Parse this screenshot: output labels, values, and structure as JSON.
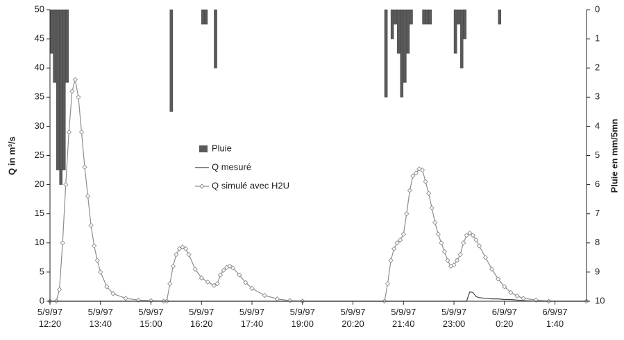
{
  "chart_data": {
    "type": "line",
    "ylabel": "Q in m³/s",
    "y2label": "Pluie en mm/5mn",
    "ylim": [
      0,
      50
    ],
    "yticks": [
      0,
      5,
      10,
      15,
      20,
      25,
      30,
      35,
      40,
      45,
      50
    ],
    "y2lim": [
      10,
      0
    ],
    "y2ticks": [
      0,
      1,
      2,
      3,
      4,
      5,
      6,
      7,
      8,
      9,
      10
    ],
    "xlim": [
      "5/9/97 12:20",
      "6/9/97 2:30"
    ],
    "xticks": [
      "5/9/97 12:20",
      "5/9/97 13:40",
      "5/9/97 15:00",
      "5/9/97 16:20",
      "5/9/97 17:40",
      "5/9/97 19:00",
      "5/9/97 20:20",
      "5/9/97 21:40",
      "5/9/97 23:00",
      "6/9/97 0:20",
      "6/9/97 1:40"
    ],
    "x": [
      "5/9/97 12:20",
      "5/9/97 12:30",
      "5/9/97 12:35",
      "5/9/97 12:40",
      "5/9/97 12:45",
      "5/9/97 12:50",
      "5/9/97 12:55",
      "5/9/97 13:00",
      "5/9/97 13:05",
      "5/9/97 13:10",
      "5/9/97 13:15",
      "5/9/97 13:20",
      "5/9/97 13:25",
      "5/9/97 13:30",
      "5/9/97 13:35",
      "5/9/97 13:40",
      "5/9/97 13:50",
      "5/9/97 14:00",
      "5/9/97 14:20",
      "5/9/97 14:40",
      "5/9/97 15:00",
      "5/9/97 15:20",
      "5/9/97 15:25",
      "5/9/97 15:30",
      "5/9/97 15:35",
      "5/9/97 15:40",
      "5/9/97 15:45",
      "5/9/97 15:50",
      "5/9/97 15:55",
      "5/9/97 16:00",
      "5/9/97 16:10",
      "5/9/97 16:20",
      "5/9/97 16:30",
      "5/9/97 16:40",
      "5/9/97 16:45",
      "5/9/97 16:50",
      "5/9/97 16:55",
      "5/9/97 17:00",
      "5/9/97 17:05",
      "5/9/97 17:10",
      "5/9/97 17:20",
      "5/9/97 17:30",
      "5/9/97 17:40",
      "5/9/97 18:00",
      "5/9/97 18:20",
      "5/9/97 18:40",
      "5/9/97 19:00",
      "5/9/97 21:10",
      "5/9/97 21:15",
      "5/9/97 21:20",
      "5/9/97 21:25",
      "5/9/97 21:30",
      "5/9/97 21:35",
      "5/9/97 21:40",
      "5/9/97 21:45",
      "5/9/97 21:50",
      "5/9/97 21:55",
      "5/9/97 22:00",
      "5/9/97 22:05",
      "5/9/97 22:10",
      "5/9/97 22:15",
      "5/9/97 22:20",
      "5/9/97 22:25",
      "5/9/97 22:30",
      "5/9/97 22:35",
      "5/9/97 22:40",
      "5/9/97 22:45",
      "5/9/97 22:50",
      "5/9/97 22:55",
      "5/9/97 23:00",
      "5/9/97 23:05",
      "5/9/97 23:10",
      "5/9/97 23:15",
      "5/9/97 23:20",
      "5/9/97 23:25",
      "5/9/97 23:30",
      "5/9/97 23:35",
      "5/9/97 23:40",
      "5/9/97 23:50",
      "6/9/97 0:00",
      "6/9/97 0:10",
      "6/9/97 0:20",
      "6/9/97 0:30",
      "6/9/97 0:40",
      "6/9/97 0:50",
      "6/9/97 1:10",
      "6/9/97 1:30",
      "6/9/97 2:30"
    ],
    "series": [
      {
        "name": "Pluie",
        "type": "bar",
        "axis": "y2",
        "color": "#5a5a5a",
        "x": [
          "5/9/97 12:20",
          "5/9/97 12:25",
          "5/9/97 12:30",
          "5/9/97 12:35",
          "5/9/97 12:40",
          "5/9/97 12:45",
          "5/9/97 15:30",
          "5/9/97 16:20",
          "5/9/97 16:25",
          "5/9/97 16:40",
          "5/9/97 21:10",
          "5/9/97 21:20",
          "5/9/97 21:25",
          "5/9/97 21:30",
          "5/9/97 21:35",
          "5/9/97 21:40",
          "5/9/97 21:45",
          "5/9/97 21:50",
          "5/9/97 22:10",
          "5/9/97 22:15",
          "5/9/97 22:20",
          "5/9/97 23:00",
          "5/9/97 23:05",
          "5/9/97 23:10",
          "5/9/97 23:15",
          "6/9/97 0:10"
        ],
        "values": [
          1.5,
          2.5,
          5.5,
          6,
          5.5,
          2.5,
          3.5,
          0.5,
          0.5,
          2,
          3,
          1,
          0.5,
          1.5,
          3,
          2.5,
          1.5,
          0.5,
          0.5,
          0.5,
          0.5,
          1.5,
          0.5,
          2,
          1,
          0.5
        ]
      },
      {
        "name": "Q mesuré",
        "type": "line",
        "color": "#444444",
        "values": [
          0,
          0,
          0,
          0,
          0,
          0,
          0,
          0,
          0,
          0,
          0,
          0,
          0,
          0,
          0,
          0,
          0,
          0,
          0,
          0,
          0,
          0,
          0,
          0,
          0,
          0,
          0,
          0,
          0,
          0,
          0,
          0,
          0,
          0,
          0,
          0,
          0,
          0,
          0,
          0,
          0,
          0,
          0,
          0,
          0,
          0,
          0,
          0,
          0,
          0,
          0,
          0,
          0,
          0,
          0,
          0,
          0,
          0,
          0,
          0,
          0,
          0,
          0,
          0,
          0,
          0,
          0,
          0,
          0,
          0,
          0,
          0,
          0,
          0,
          1.6,
          1.5,
          0.8,
          0.6,
          0.5,
          0.4,
          0.4,
          0.3,
          0.3,
          0.2,
          0.1,
          0,
          0,
          0
        ]
      },
      {
        "name": "Q simulé avec H2U",
        "type": "line",
        "marker": "diamond",
        "color": "#8c8c8c",
        "values": [
          0,
          0,
          2,
          10,
          20,
          29,
          36,
          38,
          35,
          29,
          23,
          18,
          13,
          9.5,
          7,
          5,
          2.5,
          1.3,
          0.5,
          0.2,
          0.1,
          0,
          0,
          3,
          6,
          8,
          9,
          9.3,
          9,
          8,
          5.5,
          4,
          3.3,
          2.7,
          3,
          4.5,
          5.3,
          5.8,
          6,
          5.7,
          4.5,
          3.2,
          2.2,
          1,
          0.4,
          0.1,
          0,
          0,
          3,
          7,
          9,
          10,
          10.5,
          11.5,
          15,
          19,
          21.5,
          22,
          22.7,
          22.5,
          20.5,
          18.5,
          16,
          13.5,
          11.5,
          10,
          8.5,
          7,
          6,
          6.2,
          7,
          8,
          10,
          11.3,
          11.7,
          11.3,
          10.5,
          9.5,
          7.5,
          5.5,
          3.8,
          2.5,
          1.5,
          0.9,
          0.5,
          0.2,
          0,
          0
        ]
      }
    ]
  }
}
